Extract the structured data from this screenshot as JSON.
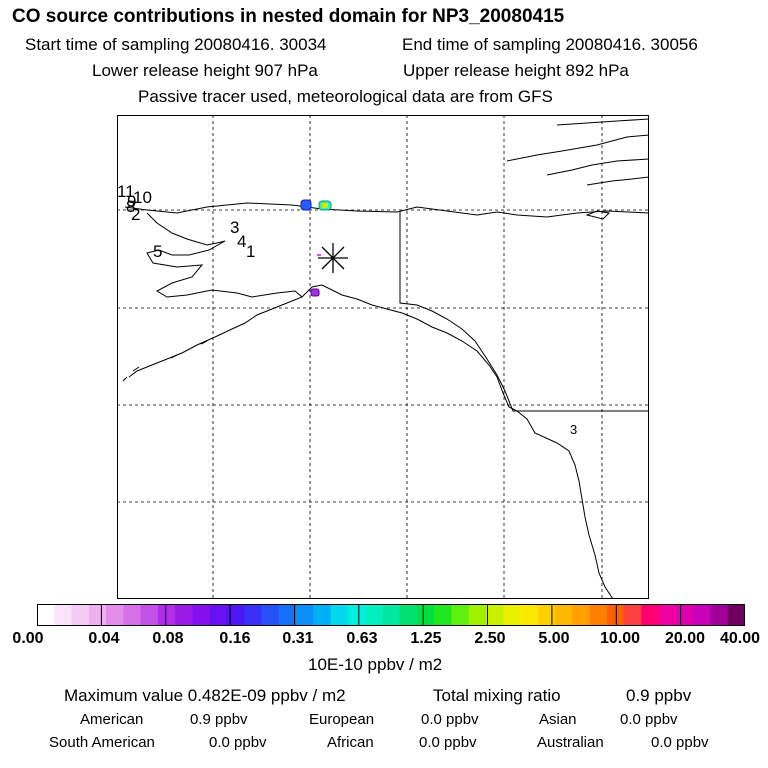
{
  "header": {
    "title": "CO  source contributions in nested domain for NP3_20080415",
    "start_time": "Start time of sampling 20080416. 30034",
    "end_time": "End time of sampling 20080416. 30056",
    "lower_height": "Lower release height  907 hPa",
    "upper_height": "Upper release height  892 hPa",
    "tracer_note": "Passive tracer used, meteorological data are from GFS"
  },
  "map": {
    "trajectory_labels": [
      "11",
      "10",
      "9",
      "8",
      "2",
      "3",
      "4",
      "1",
      "5",
      "3"
    ],
    "marker": "release-point"
  },
  "colorbar": {
    "colors": [
      "#ffffff",
      "#fbe4fb",
      "#f5cbf5",
      "#eeb1f0",
      "#e38ee8",
      "#d670e8",
      "#c450ea",
      "#b02ee8",
      "#9a1ae6",
      "#8410f0",
      "#6a10f5",
      "#4d18f5",
      "#3a30f8",
      "#2550fa",
      "#1470fa",
      "#0a90f8",
      "#00b0f5",
      "#00d8f0",
      "#00f0e0",
      "#00f0c0",
      "#00e8a0",
      "#00e070",
      "#00e040",
      "#20e820",
      "#60f010",
      "#a0f000",
      "#c8f000",
      "#e8f000",
      "#ffe800",
      "#ffd000",
      "#ffb800",
      "#ffa000",
      "#ff8000",
      "#ff6000",
      "#ff4040",
      "#ff0070",
      "#f000a0",
      "#e000b0",
      "#c800b8",
      "#a00098",
      "#700060"
    ],
    "labels": [
      "0.00",
      "0.04",
      "0.08",
      "0.16",
      "0.31",
      "0.63",
      "1.25",
      "2.50",
      "5.00",
      "10.00",
      "20.00",
      "40.00"
    ],
    "units": "10E-10 ppbv / m2"
  },
  "summary": {
    "max_value": "Maximum value  0.482E-09 ppbv / m2",
    "total_label": "Total mixing ratio",
    "total_value": "0.9 ppbv",
    "regions": [
      {
        "name": "American",
        "value": "0.9 ppbv"
      },
      {
        "name": "European",
        "value": "0.0 ppbv"
      },
      {
        "name": "Asian",
        "value": "0.0 ppbv"
      },
      {
        "name": "South American",
        "value": "0.0 ppbv"
      },
      {
        "name": "African",
        "value": "0.0 ppbv"
      },
      {
        "name": "Australian",
        "value": "0.0 ppbv"
      }
    ]
  }
}
